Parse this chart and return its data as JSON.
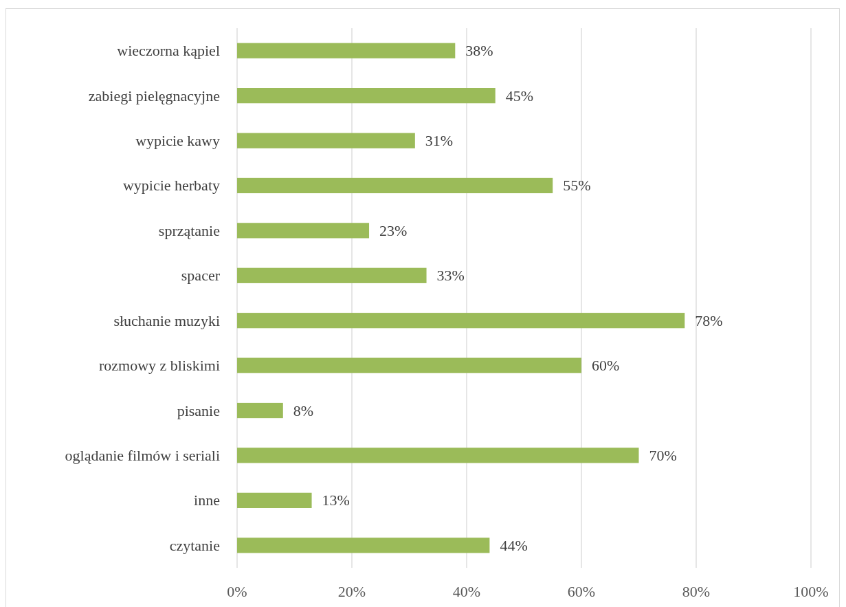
{
  "chart_data": {
    "type": "bar",
    "orientation": "horizontal",
    "categories": [
      "wieczorna kąpiel",
      "zabiegi pielęgnacyjne",
      "wypicie kawy",
      "wypicie herbaty",
      "sprzątanie",
      "spacer",
      "słuchanie muzyki",
      "rozmowy z bliskimi",
      "pisanie",
      "oglądanie filmów i seriali",
      "inne",
      "czytanie"
    ],
    "values": [
      38,
      45,
      31,
      55,
      23,
      33,
      78,
      60,
      8,
      70,
      13,
      44
    ],
    "value_labels": [
      "38%",
      "45%",
      "31%",
      "55%",
      "23%",
      "33%",
      "78%",
      "60%",
      "8%",
      "70%",
      "13%",
      "44%"
    ],
    "color": "#9bbb59",
    "xlim": [
      0,
      100
    ],
    "xticks": [
      {
        "value": 0,
        "label": "0%"
      },
      {
        "value": 20,
        "label": "20%"
      },
      {
        "value": 40,
        "label": "40%"
      },
      {
        "value": 60,
        "label": "60%"
      },
      {
        "value": 80,
        "label": "80%"
      },
      {
        "value": 100,
        "label": "100%"
      }
    ],
    "grid": "x"
  }
}
